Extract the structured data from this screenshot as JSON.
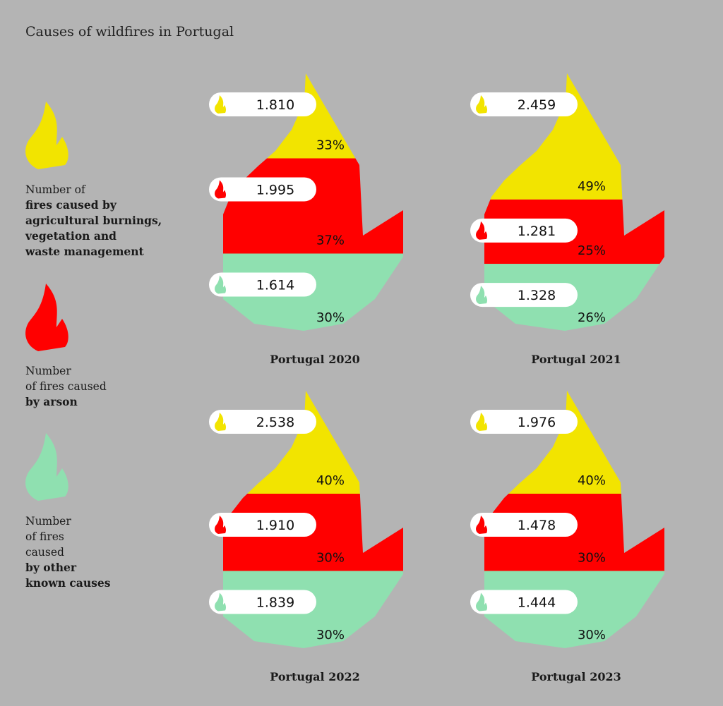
{
  "title": "Causes of wildfires in Portugal",
  "colors": {
    "background": "#b4b4b4",
    "agricultural": "#f2e400",
    "arson": "#ff0000",
    "other": "#8fe0b0",
    "pill": "#ffffff"
  },
  "legend": [
    {
      "icon": "flame-icon",
      "color": "#f2e400",
      "lines_regular": [
        "Number of"
      ],
      "lines_bold": [
        "fires caused by",
        "agricultural burnings,",
        "vegetation and",
        "waste management"
      ]
    },
    {
      "icon": "flame-icon",
      "color": "#ff0000",
      "lines_regular": [
        "Number",
        "of fires caused"
      ],
      "lines_bold": [
        "by arson"
      ]
    },
    {
      "icon": "flame-icon",
      "color": "#8fe0b0",
      "lines_regular": [
        "Number",
        "of fires",
        "caused"
      ],
      "lines_bold": [
        "by other",
        "known causes"
      ]
    }
  ],
  "chart_data": [
    {
      "type": "area",
      "title": "Portugal 2020",
      "series": [
        {
          "name": "agricultural",
          "value": "1.810",
          "percent": 33
        },
        {
          "name": "arson",
          "value": "1.995",
          "percent": 37
        },
        {
          "name": "other",
          "value": "1.614",
          "percent": 30
        }
      ]
    },
    {
      "type": "area",
      "title": "Portugal 2021",
      "series": [
        {
          "name": "agricultural",
          "value": "2.459",
          "percent": 49
        },
        {
          "name": "arson",
          "value": "1.281",
          "percent": 25
        },
        {
          "name": "other",
          "value": "1.328",
          "percent": 26
        }
      ]
    },
    {
      "type": "area",
      "title": "Portugal 2022",
      "series": [
        {
          "name": "agricultural",
          "value": "2.538",
          "percent": 40
        },
        {
          "name": "arson",
          "value": "1.910",
          "percent": 30
        },
        {
          "name": "other",
          "value": "1.839",
          "percent": 30
        }
      ]
    },
    {
      "type": "area",
      "title": "Portugal 2023",
      "series": [
        {
          "name": "agricultural",
          "value": "1.976",
          "percent": 40
        },
        {
          "name": "arson",
          "value": "1.478",
          "percent": 30
        },
        {
          "name": "other",
          "value": "1.444",
          "percent": 30
        }
      ]
    }
  ]
}
